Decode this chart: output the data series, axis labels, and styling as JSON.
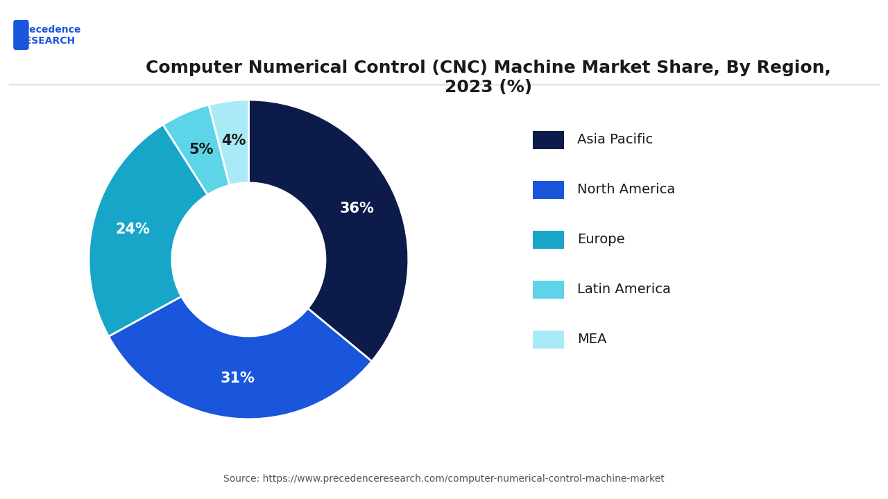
{
  "title": "Computer Numerical Control (CNC) Machine Market Share, By Region,\n2023 (%)",
  "labels": [
    "Asia Pacific",
    "North America",
    "Europe",
    "Latin America",
    "MEA"
  ],
  "values": [
    36,
    31,
    24,
    5,
    4
  ],
  "colors": [
    "#0d1b4b",
    "#1a56db",
    "#17a5c8",
    "#5dd4e8",
    "#a8eaf5"
  ],
  "pct_labels": [
    "36%",
    "31%",
    "24%",
    "5%",
    "4%"
  ],
  "source": "Source: https://www.precedenceresearch.com/computer-numerical-control-machine-market",
  "background_color": "#ffffff",
  "title_fontsize": 18,
  "legend_fontsize": 14,
  "pct_fontsize": 15,
  "source_fontsize": 10
}
